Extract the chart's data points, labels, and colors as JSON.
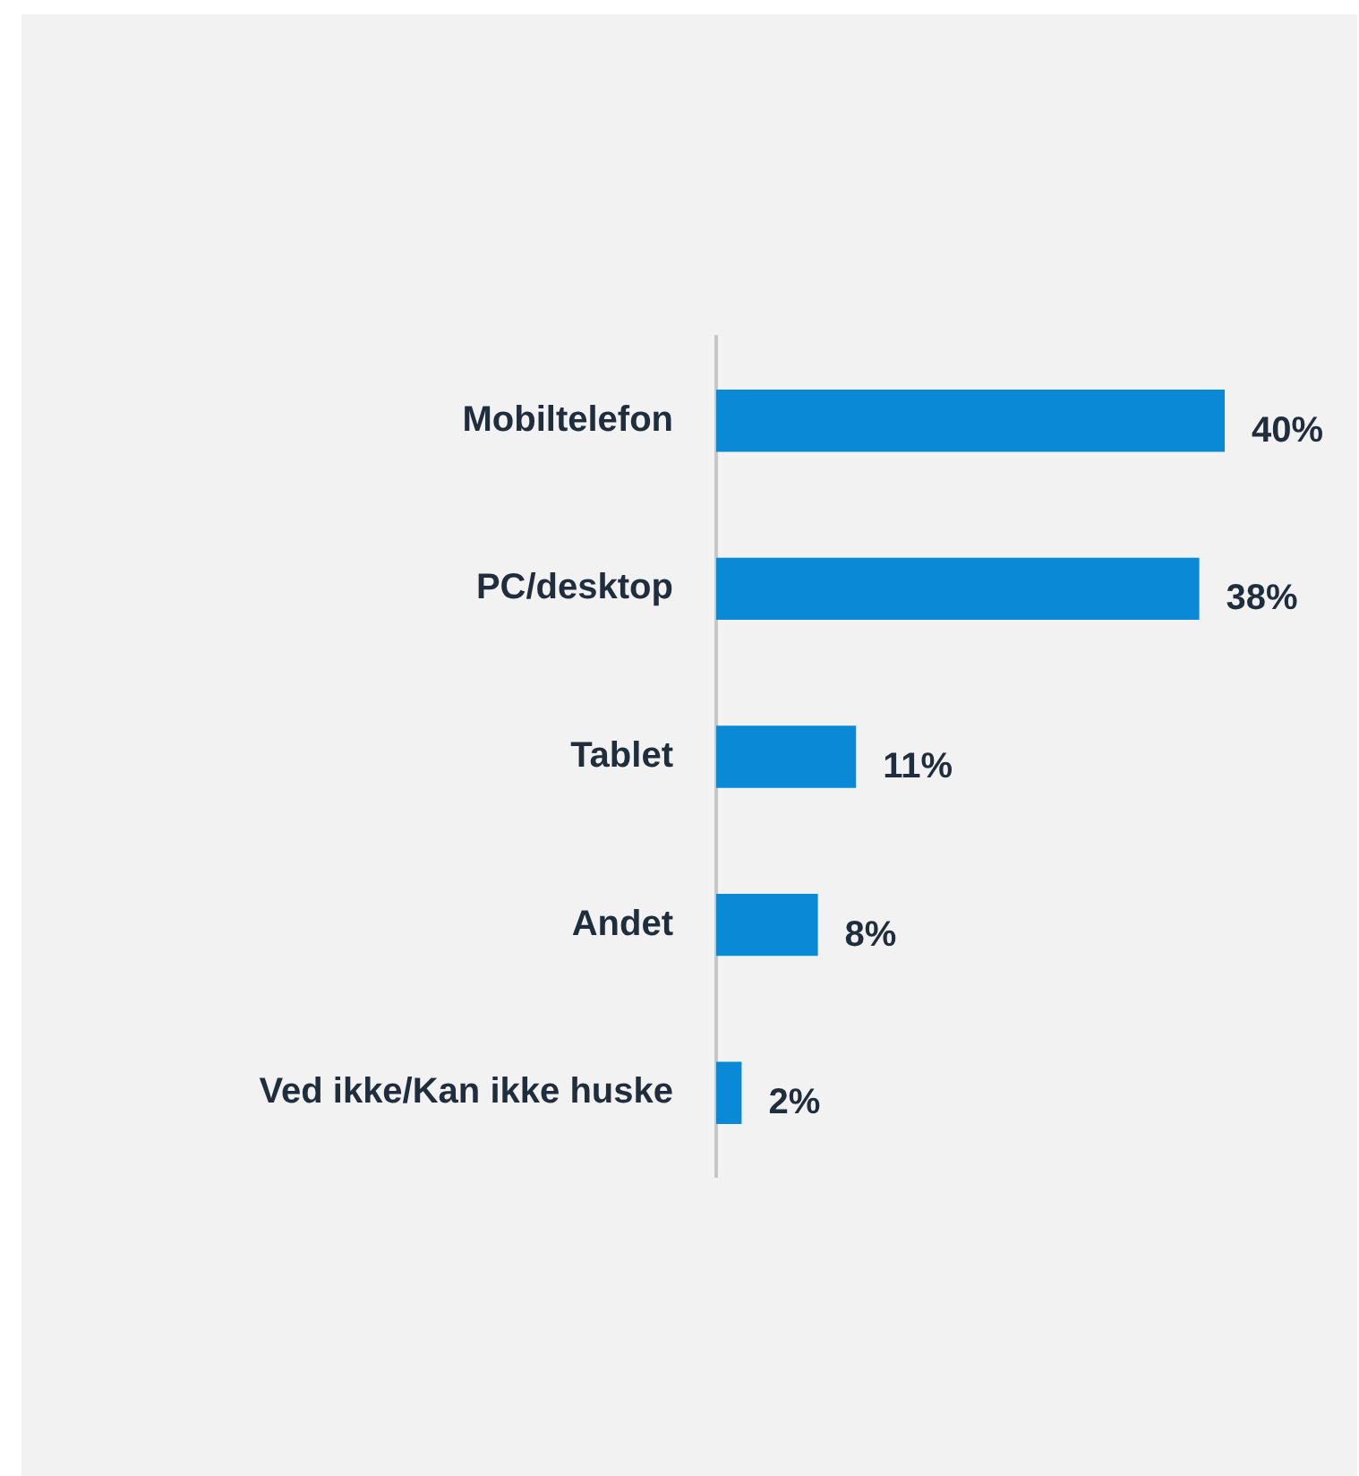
{
  "chart_data": {
    "type": "bar",
    "orientation": "horizontal",
    "categories": [
      "Mobiltelefon",
      "PC/desktop",
      "Tablet",
      "Andet",
      "Ved ikke/Kan ikke huske"
    ],
    "values": [
      40,
      38,
      11,
      8,
      2
    ],
    "value_labels": [
      "40%",
      "38%",
      "11%",
      "8%",
      "2%"
    ],
    "color": "#0a8ad6"
  }
}
